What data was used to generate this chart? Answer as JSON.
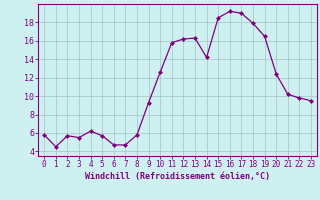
{
  "x": [
    0,
    1,
    2,
    3,
    4,
    5,
    6,
    7,
    8,
    9,
    10,
    11,
    12,
    13,
    14,
    15,
    16,
    17,
    18,
    19,
    20,
    21,
    22,
    23
  ],
  "y": [
    5.8,
    4.5,
    5.7,
    5.5,
    6.2,
    5.7,
    4.7,
    4.7,
    5.8,
    9.3,
    12.6,
    15.8,
    16.2,
    16.3,
    14.2,
    18.5,
    19.2,
    19.0,
    17.9,
    16.5,
    12.4,
    10.2,
    9.8,
    9.5
  ],
  "line_color": "#800080",
  "marker": "D",
  "marker_size": 2,
  "bg_color": "#cff0f0",
  "grid_color": "#aacccc",
  "xlabel": "Windchill (Refroidissement éolien,°C)",
  "xlabel_color": "#800080",
  "tick_color": "#800080",
  "spine_color": "#800080",
  "ylim": [
    3.5,
    20.0
  ],
  "xlim": [
    -0.5,
    23.5
  ],
  "yticks": [
    4,
    6,
    8,
    10,
    12,
    14,
    16,
    18
  ],
  "xticks": [
    0,
    1,
    2,
    3,
    4,
    5,
    6,
    7,
    8,
    9,
    10,
    11,
    12,
    13,
    14,
    15,
    16,
    17,
    18,
    19,
    20,
    21,
    22,
    23
  ],
  "xtick_labels": [
    "0",
    "1",
    "2",
    "3",
    "4",
    "5",
    "6",
    "7",
    "8",
    "9",
    "10",
    "11",
    "12",
    "13",
    "14",
    "15",
    "16",
    "17",
    "18",
    "19",
    "20",
    "21",
    "22",
    "23"
  ]
}
